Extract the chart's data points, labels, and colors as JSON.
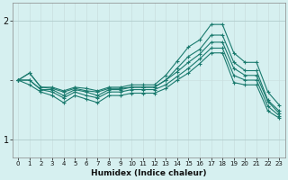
{
  "xlabel": "Humidex (Indice chaleur)",
  "bg_color": "#d6f0f0",
  "line_color": "#1a7a6e",
  "grid_color_v": "#c8dede",
  "grid_color_h": "#b0cccc",
  "x": [
    0,
    1,
    2,
    3,
    4,
    5,
    6,
    7,
    8,
    9,
    10,
    11,
    12,
    13,
    14,
    15,
    16,
    17,
    18,
    19,
    20,
    21,
    22,
    23
  ],
  "lines": [
    [
      1.5,
      1.56,
      1.44,
      1.44,
      1.41,
      1.44,
      1.43,
      1.41,
      1.44,
      1.44,
      1.46,
      1.46,
      1.46,
      1.54,
      1.66,
      1.78,
      1.84,
      1.97,
      1.97,
      1.73,
      1.65,
      1.65,
      1.4,
      1.29
    ],
    [
      1.5,
      1.56,
      1.44,
      1.43,
      1.4,
      1.43,
      1.41,
      1.4,
      1.43,
      1.43,
      1.44,
      1.44,
      1.44,
      1.5,
      1.6,
      1.7,
      1.76,
      1.88,
      1.88,
      1.65,
      1.58,
      1.58,
      1.33,
      1.24
    ],
    [
      1.5,
      1.5,
      1.42,
      1.42,
      1.37,
      1.42,
      1.4,
      1.37,
      1.42,
      1.42,
      1.44,
      1.44,
      1.44,
      1.5,
      1.57,
      1.65,
      1.72,
      1.82,
      1.82,
      1.6,
      1.54,
      1.54,
      1.32,
      1.22
    ],
    [
      1.5,
      1.5,
      1.42,
      1.4,
      1.35,
      1.4,
      1.37,
      1.35,
      1.4,
      1.4,
      1.42,
      1.42,
      1.42,
      1.46,
      1.53,
      1.6,
      1.68,
      1.77,
      1.77,
      1.54,
      1.5,
      1.5,
      1.28,
      1.2
    ],
    [
      1.5,
      1.46,
      1.4,
      1.37,
      1.31,
      1.37,
      1.34,
      1.31,
      1.37,
      1.37,
      1.39,
      1.39,
      1.39,
      1.43,
      1.5,
      1.56,
      1.64,
      1.73,
      1.73,
      1.48,
      1.46,
      1.46,
      1.24,
      1.18
    ]
  ],
  "yticks": [
    1.0,
    2.0
  ],
  "ylim": [
    0.85,
    2.15
  ],
  "xlim": [
    -0.5,
    23.5
  ],
  "xtick_fontsize": 5.0,
  "ytick_fontsize": 7.0,
  "xlabel_fontsize": 6.5
}
